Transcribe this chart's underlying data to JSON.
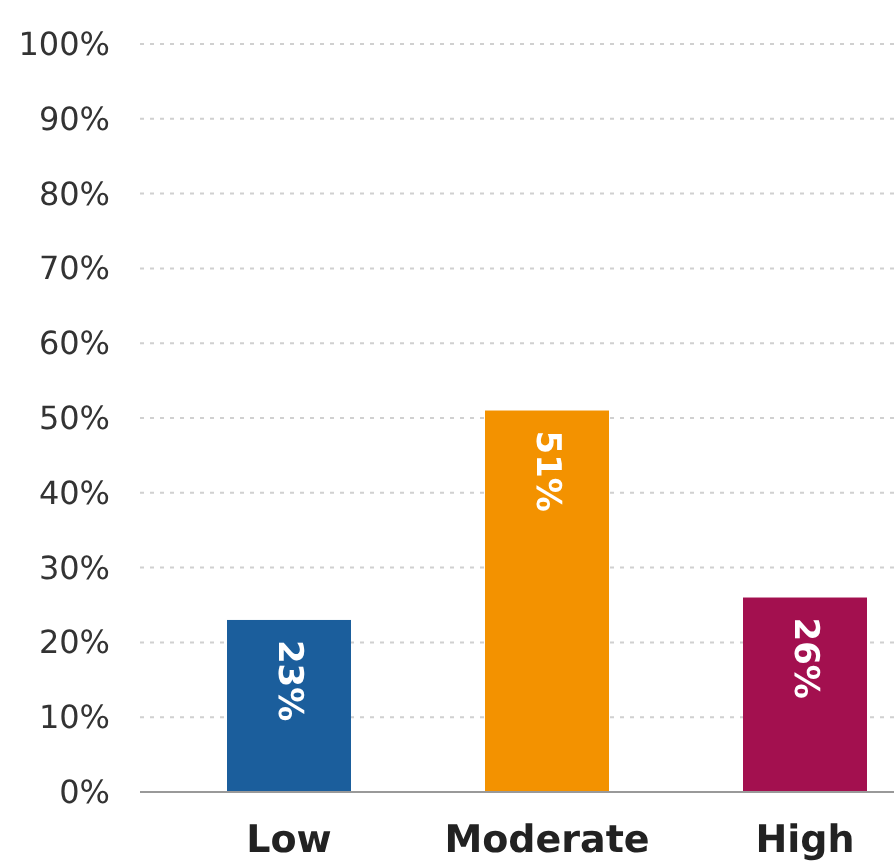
{
  "chart_data": {
    "type": "bar",
    "categories": [
      "Low",
      "Moderate",
      "High"
    ],
    "values": [
      23,
      51,
      26
    ],
    "colors": [
      "#1b5e9c",
      "#f39200",
      "#a3104f"
    ],
    "value_labels": [
      "23%",
      "51%",
      "26%"
    ],
    "ylim": [
      0,
      100
    ],
    "yticks": [
      {
        "value": 0,
        "label": "0%"
      },
      {
        "value": 10,
        "label": "10%"
      },
      {
        "value": 20,
        "label": "20%"
      },
      {
        "value": 30,
        "label": "30%"
      },
      {
        "value": 40,
        "label": "40%"
      },
      {
        "value": 50,
        "label": "50%"
      },
      {
        "value": 60,
        "label": "60%"
      },
      {
        "value": 70,
        "label": "70%"
      },
      {
        "value": 80,
        "label": "80%"
      },
      {
        "value": 90,
        "label": "90%"
      },
      {
        "value": 100,
        "label": "100%"
      }
    ],
    "grid": "y"
  }
}
